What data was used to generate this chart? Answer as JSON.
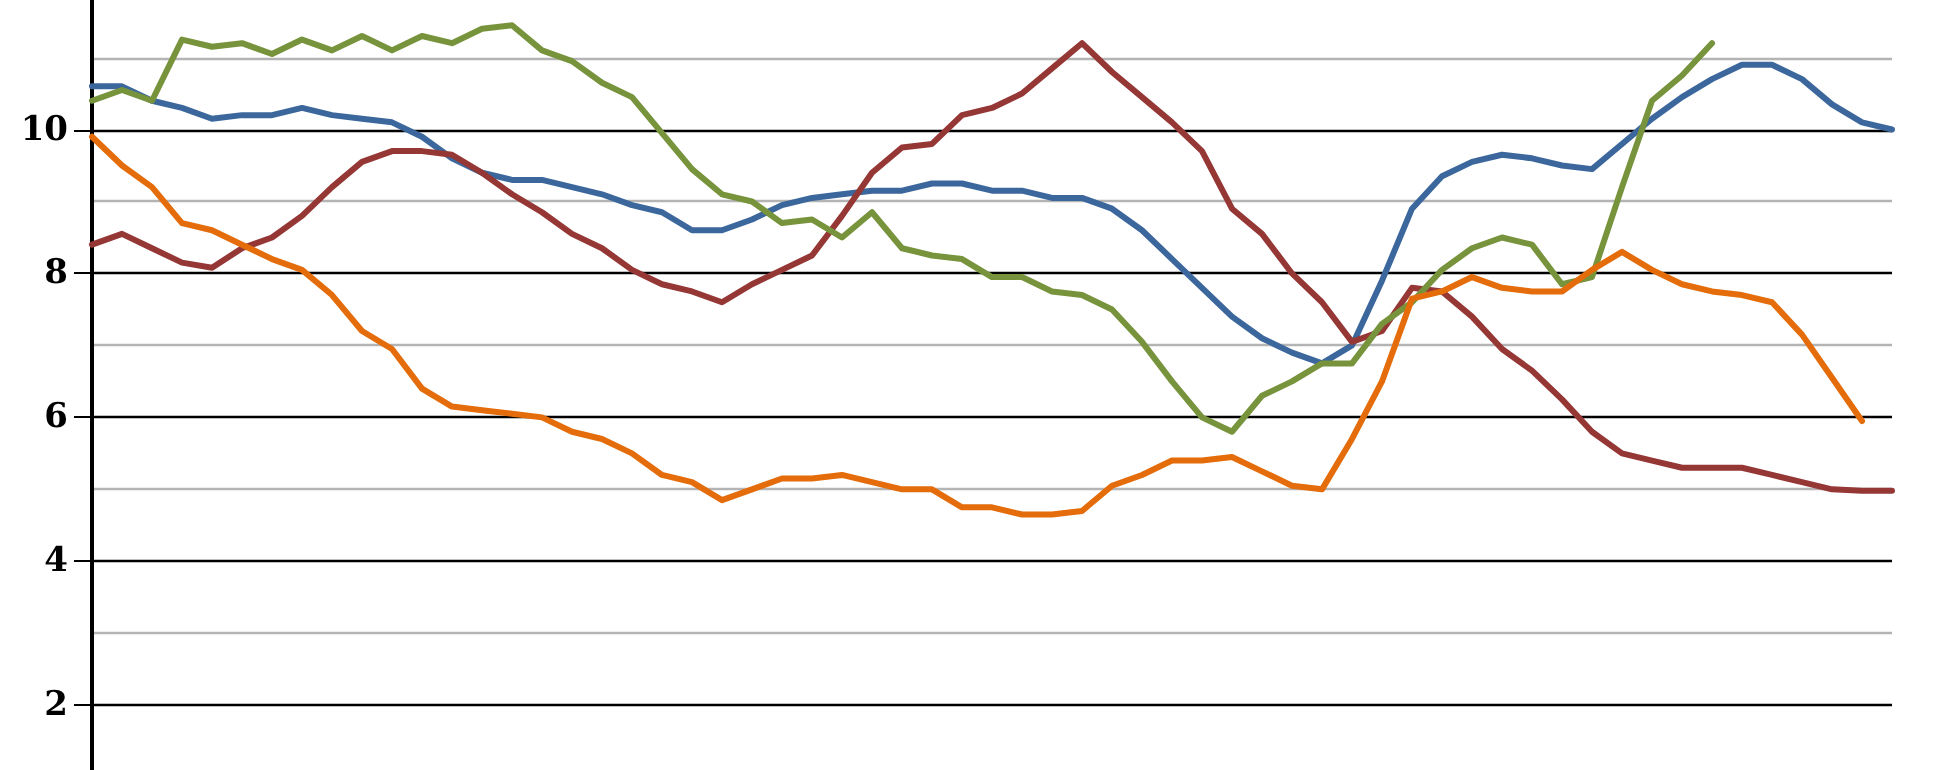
{
  "chart_data": {
    "type": "line",
    "categories": [
      null,
      null,
      null,
      null,
      null,
      null,
      null,
      null,
      null,
      null,
      null,
      null,
      null,
      null,
      null,
      null,
      null,
      null,
      null,
      null,
      null,
      null,
      null,
      null,
      null,
      null,
      null,
      null,
      null,
      null,
      null,
      null,
      null,
      null,
      null,
      null,
      null,
      null,
      null,
      null,
      null,
      null,
      null,
      null,
      null,
      null,
      null,
      null,
      null,
      null,
      null,
      null,
      null,
      null,
      null,
      null,
      null,
      null,
      null,
      null,
      null
    ],
    "series": [
      {
        "color": "#3c679c",
        "values": [
          10.6,
          10.6,
          10.4,
          10.3,
          10.15,
          10.2,
          10.2,
          10.3,
          10.2,
          10.15,
          10.1,
          9.9,
          9.6,
          9.4,
          9.3,
          9.3,
          9.2,
          9.1,
          8.95,
          8.85,
          8.6,
          8.6,
          8.75,
          8.95,
          9.05,
          9.1,
          9.15,
          9.15,
          9.25,
          9.25,
          9.15,
          9.15,
          9.05,
          9.05,
          8.9,
          8.6,
          8.2,
          7.8,
          7.4,
          7.1,
          6.9,
          6.75,
          7.0,
          7.9,
          8.9,
          9.35,
          9.55,
          9.65,
          9.6,
          9.5,
          9.45,
          9.8,
          10.15,
          10.45,
          10.7,
          10.9,
          10.9,
          10.7,
          10.35,
          10.1,
          10.0
        ]
      },
      {
        "color": "#953735",
        "values": [
          8.4,
          8.55,
          8.35,
          8.15,
          8.08,
          8.35,
          8.5,
          8.8,
          9.2,
          9.55,
          9.7,
          9.7,
          9.65,
          9.4,
          9.1,
          8.85,
          8.55,
          8.35,
          8.05,
          7.85,
          7.75,
          7.6,
          7.85,
          8.05,
          8.25,
          8.8,
          9.4,
          9.75,
          9.8,
          10.2,
          10.3,
          10.5,
          10.85,
          11.2,
          10.8,
          10.45,
          10.1,
          9.7,
          8.9,
          8.55,
          8.0,
          7.6,
          7.05,
          7.2,
          7.8,
          7.75,
          7.4,
          6.95,
          6.65,
          6.25,
          5.8,
          5.5,
          5.4,
          5.3,
          5.3,
          5.3,
          5.2,
          5.1,
          5.0,
          4.98,
          4.98
        ]
      },
      {
        "color": "#77933c",
        "values": [
          10.4,
          10.55,
          10.4,
          11.25,
          11.15,
          11.2,
          11.05,
          11.25,
          11.1,
          11.3,
          11.1,
          11.3,
          11.2,
          11.4,
          11.45,
          11.1,
          10.95,
          10.65,
          10.45,
          9.95,
          9.45,
          9.1,
          9.0,
          8.7,
          8.75,
          8.5,
          8.85,
          8.35,
          8.25,
          8.2,
          7.95,
          7.95,
          7.75,
          7.7,
          7.5,
          7.05,
          6.5,
          6.0,
          5.8,
          6.3,
          6.5,
          6.75,
          6.75,
          7.3,
          7.6,
          8.05,
          8.35,
          8.5,
          8.4,
          7.85,
          7.95,
          9.2,
          10.4,
          10.75,
          11.2,
          null,
          null,
          null,
          null,
          null,
          null
        ]
      },
      {
        "color": "#e46c0a",
        "values": [
          9.9,
          9.5,
          9.2,
          8.7,
          8.6,
          8.4,
          8.2,
          8.05,
          7.7,
          7.2,
          6.95,
          6.4,
          6.15,
          6.1,
          6.05,
          6.0,
          5.8,
          5.7,
          5.5,
          5.2,
          5.1,
          4.85,
          5.0,
          5.15,
          5.15,
          5.2,
          5.1,
          5.0,
          5.0,
          4.75,
          4.75,
          4.65,
          4.65,
          4.7,
          5.05,
          5.2,
          5.4,
          5.4,
          5.45,
          5.25,
          5.05,
          5.0,
          5.7,
          6.5,
          7.65,
          7.75,
          7.95,
          7.8,
          7.75,
          7.75,
          8.05,
          8.3,
          8.05,
          7.85,
          7.75,
          7.7,
          7.6,
          7.15,
          6.55,
          5.95,
          null
        ]
      }
    ],
    "ylim": [
      1.1,
      11.8
    ],
    "yticks": [
      2,
      {
        "value": 3,
        "label": null
      },
      4,
      {
        "value": 5,
        "label": null
      },
      6,
      {
        "value": 7,
        "label": null
      },
      8,
      {
        "value": 9,
        "label": null
      },
      10,
      {
        "value": 11,
        "label": null
      }
    ],
    "grid": true,
    "tick_labels": "y",
    "marker": "none",
    "line_style": "solid"
  }
}
